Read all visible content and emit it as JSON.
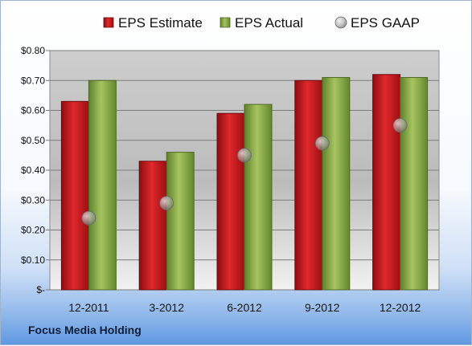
{
  "company_label": "Focus Media Holding",
  "chart_data": {
    "type": "bar",
    "categories": [
      "12-2011",
      "3-2012",
      "6-2012",
      "9-2012",
      "12-2012"
    ],
    "series": [
      {
        "name": "EPS Estimate",
        "kind": "bar",
        "color": "#c8181e",
        "values": [
          0.63,
          0.43,
          0.59,
          0.7,
          0.72
        ]
      },
      {
        "name": "EPS Actual",
        "kind": "bar",
        "color": "#8fb04a",
        "values": [
          0.7,
          0.46,
          0.62,
          0.71,
          0.71
        ]
      },
      {
        "name": "EPS GAAP",
        "kind": "point",
        "color": "#a9a9a9",
        "values": [
          0.24,
          0.29,
          0.45,
          0.49,
          0.55
        ]
      }
    ],
    "ylim": [
      0,
      0.8
    ],
    "yticks": [
      0,
      0.1,
      0.2,
      0.3,
      0.4,
      0.5,
      0.6,
      0.7,
      0.8
    ],
    "ytick_labels": [
      "$-",
      "$0.10",
      "$0.20",
      "$0.30",
      "$0.40",
      "$0.50",
      "$0.60",
      "$0.70",
      "$0.80"
    ],
    "grid": true,
    "legend": "top"
  }
}
